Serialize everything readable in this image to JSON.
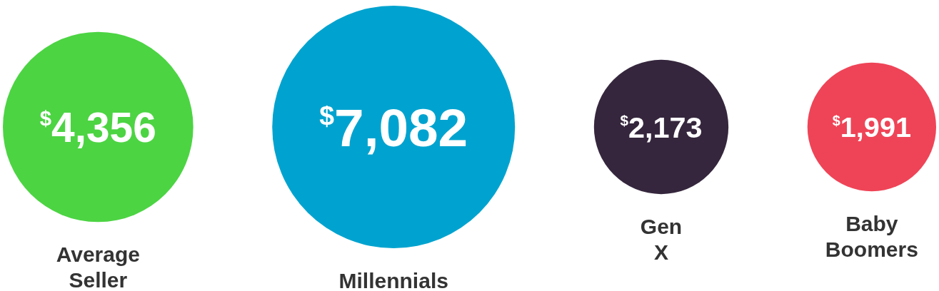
{
  "chart_data": {
    "type": "other",
    "categories": [
      "Average Seller",
      "Millennials",
      "Gen X",
      "Baby Boomers"
    ],
    "values": [
      4356,
      7082,
      2173,
      1991
    ],
    "value_labels": [
      "$^{$}$4,356",
      "$^{$}$7,082",
      "$^{$}$2,173",
      "$^{$}$1,991"
    ],
    "colors": [
      "#4cd443",
      "#00a3cf",
      "#35263d",
      "#ef4457"
    ]
  }
}
